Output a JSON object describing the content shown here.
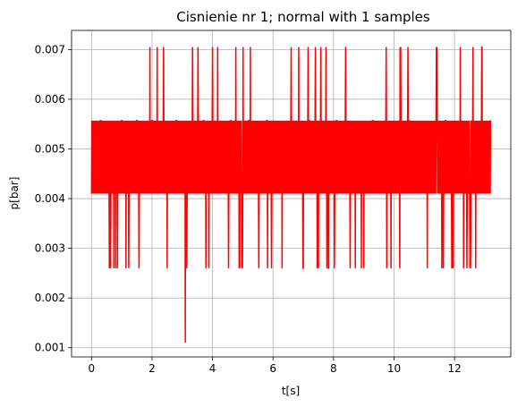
{
  "chart_data": {
    "type": "line",
    "title": "Cisnienie nr 1; normal with 1 samples",
    "xlabel": "t[s]",
    "ylabel": "p[bar]",
    "xlim": [
      -0.66,
      13.86
    ],
    "ylim": [
      0.000815,
      0.007385
    ],
    "xticks": [
      0,
      2,
      4,
      6,
      8,
      10,
      12
    ],
    "xtick_labels": [
      "0",
      "2",
      "4",
      "6",
      "8",
      "10",
      "12"
    ],
    "yticks": [
      0.001,
      0.002,
      0.003,
      0.004,
      0.005,
      0.006,
      0.007
    ],
    "ytick_labels": [
      "0.001",
      "0.002",
      "0.003",
      "0.004",
      "0.005",
      "0.006",
      "0.007"
    ],
    "grid": true,
    "line_color": "#ff0000",
    "levels": [
      0.0011,
      0.0026,
      0.0041,
      0.00557,
      0.00705
    ],
    "series": [
      {
        "name": "",
        "x": [
          0.0,
          0.3,
          0.5,
          0.8,
          1.0,
          1.2,
          1.5,
          1.8,
          2.0,
          2.2,
          2.5,
          2.8,
          3.1,
          3.4,
          3.7,
          4.0,
          4.3,
          4.6,
          4.9,
          5.2,
          5.5,
          5.8,
          6.0,
          6.3,
          6.6,
          6.9,
          7.2,
          7.5,
          7.8,
          8.1,
          8.4,
          8.7,
          9.0,
          9.3,
          9.6,
          9.9,
          10.2,
          10.5,
          10.8,
          11.1,
          11.4,
          11.7,
          12.0,
          12.3,
          12.6,
          12.9,
          13.1,
          13.2
        ],
        "y": [
          0.0041,
          0.00557,
          0.0041,
          0.0026,
          0.00557,
          0.0041,
          0.00557,
          0.0041,
          0.00557,
          0.0041,
          0.0026,
          0.00557,
          0.0011,
          0.0041,
          0.00557,
          0.00705,
          0.0041,
          0.00557,
          0.0026,
          0.00557,
          0.0041,
          0.00557,
          0.0041,
          0.0026,
          0.00705,
          0.0041,
          0.00557,
          0.0026,
          0.0041,
          0.00557,
          0.00705,
          0.0041,
          0.0026,
          0.00557,
          0.0041,
          0.0026,
          0.00705,
          0.00557,
          0.0041,
          0.0026,
          0.00705,
          0.00557,
          0.0041,
          0.0026,
          0.00557,
          0.00705,
          0.0041,
          0.00557
        ]
      }
    ]
  }
}
